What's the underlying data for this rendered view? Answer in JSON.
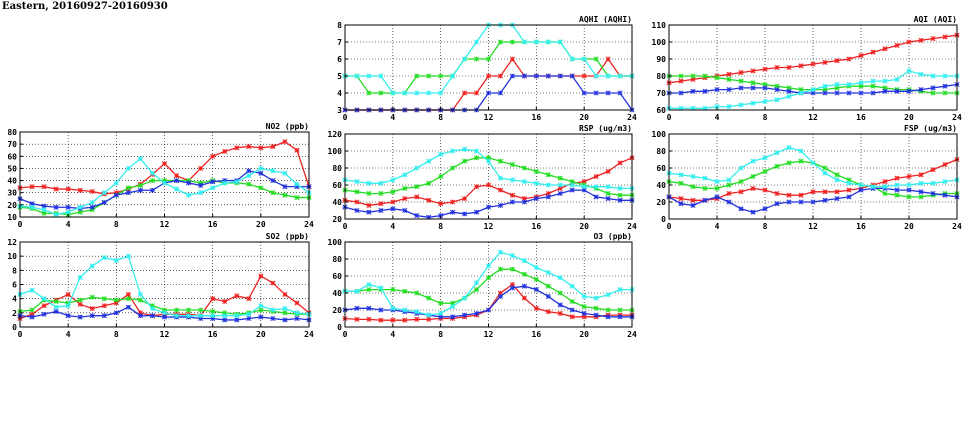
{
  "page_title": "Eastern, 20160927-20160930",
  "colors": {
    "red": "#ee2222",
    "green": "#22dd22",
    "blue": "#2233dd",
    "cyan": "#33eeee"
  },
  "chart_data": [
    {
      "id": "aqhi",
      "type": "line",
      "title": "AQHI (AQHI)",
      "xlim": [
        0,
        24
      ],
      "ylim": [
        3,
        8
      ],
      "xticks": [
        0,
        4,
        8,
        12,
        16,
        20,
        24
      ],
      "yticks": [
        3,
        4,
        5,
        6,
        7,
        8
      ],
      "grid": true,
      "x": [
        0,
        1,
        2,
        3,
        4,
        5,
        6,
        7,
        8,
        9,
        10,
        11,
        12,
        13,
        14,
        15,
        16,
        17,
        18,
        19,
        20,
        21,
        22,
        23,
        24
      ],
      "series": [
        {
          "color": "red",
          "values": [
            3,
            3,
            3,
            3,
            3,
            3,
            3,
            3,
            3,
            3,
            4,
            4,
            5,
            5,
            6,
            5,
            5,
            5,
            5,
            5,
            5,
            5,
            6,
            5,
            5
          ]
        },
        {
          "color": "green",
          "values": [
            5,
            5,
            4,
            4,
            4,
            4,
            5,
            5,
            5,
            5,
            6,
            6,
            6,
            7,
            7,
            7,
            7,
            7,
            7,
            6,
            6,
            6,
            5,
            5,
            5
          ]
        },
        {
          "color": "blue",
          "values": [
            3,
            3,
            3,
            3,
            3,
            3,
            3,
            3,
            3,
            3,
            3,
            3,
            4,
            4,
            5,
            5,
            5,
            5,
            5,
            5,
            4,
            4,
            4,
            4,
            3
          ]
        },
        {
          "color": "cyan",
          "values": [
            5,
            5,
            5,
            5,
            4,
            4,
            4,
            4,
            4,
            5,
            6,
            7,
            8,
            8,
            8,
            7,
            7,
            7,
            7,
            6,
            6,
            5,
            5,
            5,
            5
          ]
        }
      ]
    },
    {
      "id": "aqi",
      "type": "line",
      "title": "AQI (AQI)",
      "xlim": [
        0,
        24
      ],
      "ylim": [
        60,
        110
      ],
      "xticks": [
        0,
        4,
        8,
        12,
        16,
        20,
        24
      ],
      "yticks": [
        60,
        70,
        80,
        90,
        100,
        110
      ],
      "grid": true,
      "x": [
        0,
        1,
        2,
        3,
        4,
        5,
        6,
        7,
        8,
        9,
        10,
        11,
        12,
        13,
        14,
        15,
        16,
        17,
        18,
        19,
        20,
        21,
        22,
        23,
        24
      ],
      "series": [
        {
          "color": "red",
          "values": [
            76,
            77,
            78,
            79,
            80,
            81,
            82,
            83,
            84,
            85,
            85,
            86,
            87,
            88,
            89,
            90,
            92,
            94,
            96,
            98,
            100,
            101,
            102,
            103,
            104
          ]
        },
        {
          "color": "green",
          "values": [
            80,
            80,
            80,
            80,
            79,
            78,
            77,
            76,
            75,
            74,
            73,
            72,
            72,
            72,
            73,
            74,
            74,
            74,
            73,
            72,
            72,
            71,
            70,
            70,
            70
          ]
        },
        {
          "color": "blue",
          "values": [
            70,
            70,
            71,
            71,
            72,
            72,
            73,
            73,
            73,
            72,
            71,
            70,
            70,
            70,
            70,
            70,
            70,
            70,
            71,
            71,
            71,
            72,
            73,
            74,
            75
          ]
        },
        {
          "color": "cyan",
          "values": [
            61,
            61,
            61,
            61,
            62,
            62,
            63,
            64,
            65,
            66,
            68,
            70,
            72,
            74,
            75,
            75,
            76,
            77,
            77,
            78,
            83,
            81,
            80,
            80,
            80
          ]
        }
      ]
    },
    {
      "id": "no2",
      "type": "line",
      "title": "NO2 (ppb)",
      "xlim": [
        0,
        24
      ],
      "ylim": [
        10,
        80
      ],
      "xticks": [
        0,
        4,
        8,
        12,
        16,
        20,
        24
      ],
      "yticks": [
        10,
        20,
        30,
        40,
        50,
        60,
        70,
        80
      ],
      "grid": true,
      "x": [
        0,
        1,
        2,
        3,
        4,
        5,
        6,
        7,
        8,
        9,
        10,
        11,
        12,
        13,
        14,
        15,
        16,
        17,
        18,
        19,
        20,
        21,
        22,
        23,
        24
      ],
      "series": [
        {
          "color": "red",
          "values": [
            34,
            35,
            35,
            33,
            33,
            32,
            31,
            29,
            30,
            33,
            37,
            45,
            54,
            44,
            40,
            50,
            60,
            64,
            67,
            68,
            67,
            68,
            72,
            65,
            35
          ]
        },
        {
          "color": "green",
          "values": [
            18,
            17,
            13,
            13,
            12,
            14,
            16,
            22,
            28,
            34,
            36,
            40,
            40,
            40,
            40,
            38,
            40,
            38,
            38,
            37,
            34,
            30,
            28,
            26,
            26
          ]
        },
        {
          "color": "blue",
          "values": [
            25,
            21,
            19,
            18,
            18,
            17,
            18,
            22,
            28,
            30,
            32,
            32,
            38,
            40,
            38,
            36,
            39,
            40,
            40,
            48,
            46,
            40,
            35,
            35,
            35
          ]
        },
        {
          "color": "cyan",
          "values": [
            19,
            18,
            16,
            12,
            14,
            18,
            22,
            30,
            38,
            50,
            58,
            46,
            38,
            33,
            28,
            30,
            34,
            38,
            39,
            44,
            50,
            48,
            46,
            37,
            30
          ]
        }
      ]
    },
    {
      "id": "rsp",
      "type": "line",
      "title": "RSP (ug/m3)",
      "xlim": [
        0,
        24
      ],
      "ylim": [
        20,
        120
      ],
      "xticks": [
        0,
        4,
        8,
        12,
        16,
        20,
        24
      ],
      "yticks": [
        20,
        40,
        60,
        80,
        100,
        120
      ],
      "grid": true,
      "x": [
        0,
        1,
        2,
        3,
        4,
        5,
        6,
        7,
        8,
        9,
        10,
        11,
        12,
        13,
        14,
        15,
        16,
        17,
        18,
        19,
        20,
        21,
        22,
        23,
        24
      ],
      "series": [
        {
          "color": "red",
          "values": [
            42,
            40,
            36,
            38,
            40,
            44,
            46,
            42,
            38,
            40,
            44,
            58,
            60,
            54,
            48,
            44,
            46,
            50,
            56,
            62,
            64,
            70,
            76,
            86,
            92
          ]
        },
        {
          "color": "green",
          "values": [
            54,
            52,
            50,
            50,
            52,
            56,
            58,
            62,
            70,
            80,
            88,
            92,
            92,
            88,
            84,
            80,
            76,
            72,
            68,
            64,
            60,
            56,
            50,
            48,
            48
          ]
        },
        {
          "color": "blue",
          "values": [
            34,
            30,
            28,
            30,
            32,
            30,
            24,
            22,
            24,
            28,
            26,
            28,
            34,
            36,
            40,
            40,
            44,
            46,
            50,
            54,
            54,
            46,
            44,
            42,
            42
          ]
        },
        {
          "color": "cyan",
          "values": [
            66,
            64,
            62,
            62,
            66,
            72,
            80,
            88,
            96,
            100,
            102,
            100,
            88,
            68,
            66,
            64,
            62,
            60,
            60,
            60,
            58,
            58,
            58,
            56,
            56
          ]
        }
      ]
    },
    {
      "id": "fsp",
      "type": "line",
      "title": "FSP (ug/m3)",
      "xlim": [
        0,
        24
      ],
      "ylim": [
        0,
        100
      ],
      "xticks": [
        0,
        4,
        8,
        12,
        16,
        20,
        24
      ],
      "yticks": [
        0,
        20,
        40,
        60,
        80,
        100
      ],
      "grid": true,
      "x": [
        0,
        1,
        2,
        3,
        4,
        5,
        6,
        7,
        8,
        9,
        10,
        11,
        12,
        13,
        14,
        15,
        16,
        17,
        18,
        19,
        20,
        21,
        22,
        23,
        24
      ],
      "series": [
        {
          "color": "red",
          "values": [
            26,
            24,
            22,
            22,
            24,
            30,
            32,
            36,
            34,
            30,
            28,
            28,
            32,
            32,
            32,
            34,
            36,
            40,
            44,
            48,
            50,
            52,
            58,
            64,
            70
          ]
        },
        {
          "color": "green",
          "values": [
            44,
            42,
            38,
            36,
            36,
            40,
            44,
            50,
            56,
            62,
            66,
            68,
            66,
            60,
            52,
            46,
            40,
            38,
            30,
            28,
            26,
            26,
            28,
            30,
            30
          ]
        },
        {
          "color": "blue",
          "values": [
            26,
            18,
            16,
            22,
            26,
            20,
            12,
            8,
            12,
            18,
            20,
            20,
            20,
            22,
            24,
            26,
            34,
            36,
            36,
            34,
            34,
            32,
            30,
            28,
            26
          ]
        },
        {
          "color": "cyan",
          "values": [
            54,
            52,
            50,
            48,
            44,
            46,
            60,
            68,
            72,
            78,
            84,
            80,
            66,
            54,
            46,
            42,
            40,
            38,
            38,
            40,
            40,
            42,
            42,
            44,
            46
          ]
        }
      ]
    },
    {
      "id": "so2",
      "type": "line",
      "title": "SO2 (ppb)",
      "xlim": [
        0,
        24
      ],
      "ylim": [
        0,
        12
      ],
      "xticks": [
        0,
        4,
        8,
        12,
        16,
        20,
        24
      ],
      "yticks": [
        0,
        2,
        4,
        6,
        8,
        10,
        12
      ],
      "grid": true,
      "x": [
        0,
        1,
        2,
        3,
        4,
        5,
        6,
        7,
        8,
        9,
        10,
        11,
        12,
        13,
        14,
        15,
        16,
        17,
        18,
        19,
        20,
        21,
        22,
        23,
        24
      ],
      "series": [
        {
          "color": "red",
          "values": [
            1.2,
            1.8,
            3.0,
            3.8,
            4.6,
            3.2,
            2.6,
            3.0,
            3.4,
            4.6,
            2.0,
            1.6,
            1.8,
            1.8,
            1.8,
            1.6,
            4.0,
            3.6,
            4.4,
            4.0,
            7.2,
            6.2,
            4.6,
            3.4,
            2.0
          ]
        },
        {
          "color": "green",
          "values": [
            2.2,
            2.4,
            3.8,
            3.6,
            3.4,
            3.8,
            4.2,
            4.0,
            3.8,
            4.0,
            3.8,
            3.0,
            2.4,
            2.4,
            2.4,
            2.4,
            2.2,
            2.0,
            1.8,
            2.0,
            2.4,
            2.2,
            2.0,
            1.8,
            1.8
          ]
        },
        {
          "color": "blue",
          "values": [
            1.6,
            1.4,
            1.8,
            2.2,
            1.6,
            1.4,
            1.6,
            1.6,
            2.0,
            2.8,
            1.6,
            1.6,
            1.4,
            1.4,
            1.4,
            1.2,
            1.2,
            1.0,
            1.0,
            1.2,
            1.4,
            1.2,
            1.0,
            1.2,
            1.0
          ]
        },
        {
          "color": "cyan",
          "values": [
            4.6,
            5.2,
            4.0,
            2.8,
            3.0,
            7.0,
            8.6,
            9.8,
            9.4,
            10.0,
            4.6,
            2.6,
            2.0,
            1.6,
            1.6,
            1.6,
            1.6,
            1.6,
            1.6,
            1.8,
            3.0,
            2.4,
            2.6,
            2.0,
            1.8
          ]
        }
      ]
    },
    {
      "id": "o3",
      "type": "line",
      "title": "O3 (ppb)",
      "xlim": [
        0,
        24
      ],
      "ylim": [
        0,
        100
      ],
      "xticks": [
        0,
        4,
        8,
        12,
        16,
        20,
        24
      ],
      "yticks": [
        0,
        20,
        40,
        60,
        80,
        100
      ],
      "grid": true,
      "x": [
        0,
        1,
        2,
        3,
        4,
        5,
        6,
        7,
        8,
        9,
        10,
        11,
        12,
        13,
        14,
        15,
        16,
        17,
        18,
        19,
        20,
        21,
        22,
        23,
        24
      ],
      "series": [
        {
          "color": "red",
          "values": [
            10,
            9,
            9,
            8,
            8,
            8,
            9,
            9,
            10,
            10,
            12,
            14,
            20,
            40,
            50,
            34,
            22,
            18,
            16,
            12,
            12,
            12,
            14,
            14,
            14
          ]
        },
        {
          "color": "green",
          "values": [
            42,
            42,
            44,
            44,
            44,
            42,
            40,
            34,
            28,
            28,
            34,
            44,
            58,
            68,
            68,
            62,
            56,
            48,
            40,
            30,
            24,
            22,
            20,
            20,
            20
          ]
        },
        {
          "color": "blue",
          "values": [
            20,
            22,
            22,
            20,
            20,
            18,
            16,
            14,
            12,
            12,
            14,
            16,
            20,
            36,
            46,
            48,
            44,
            36,
            26,
            20,
            16,
            14,
            12,
            12,
            12
          ]
        },
        {
          "color": "cyan",
          "values": [
            42,
            42,
            50,
            46,
            22,
            20,
            18,
            14,
            16,
            24,
            34,
            52,
            72,
            88,
            84,
            78,
            70,
            64,
            58,
            48,
            36,
            34,
            38,
            44,
            44
          ]
        }
      ]
    }
  ]
}
